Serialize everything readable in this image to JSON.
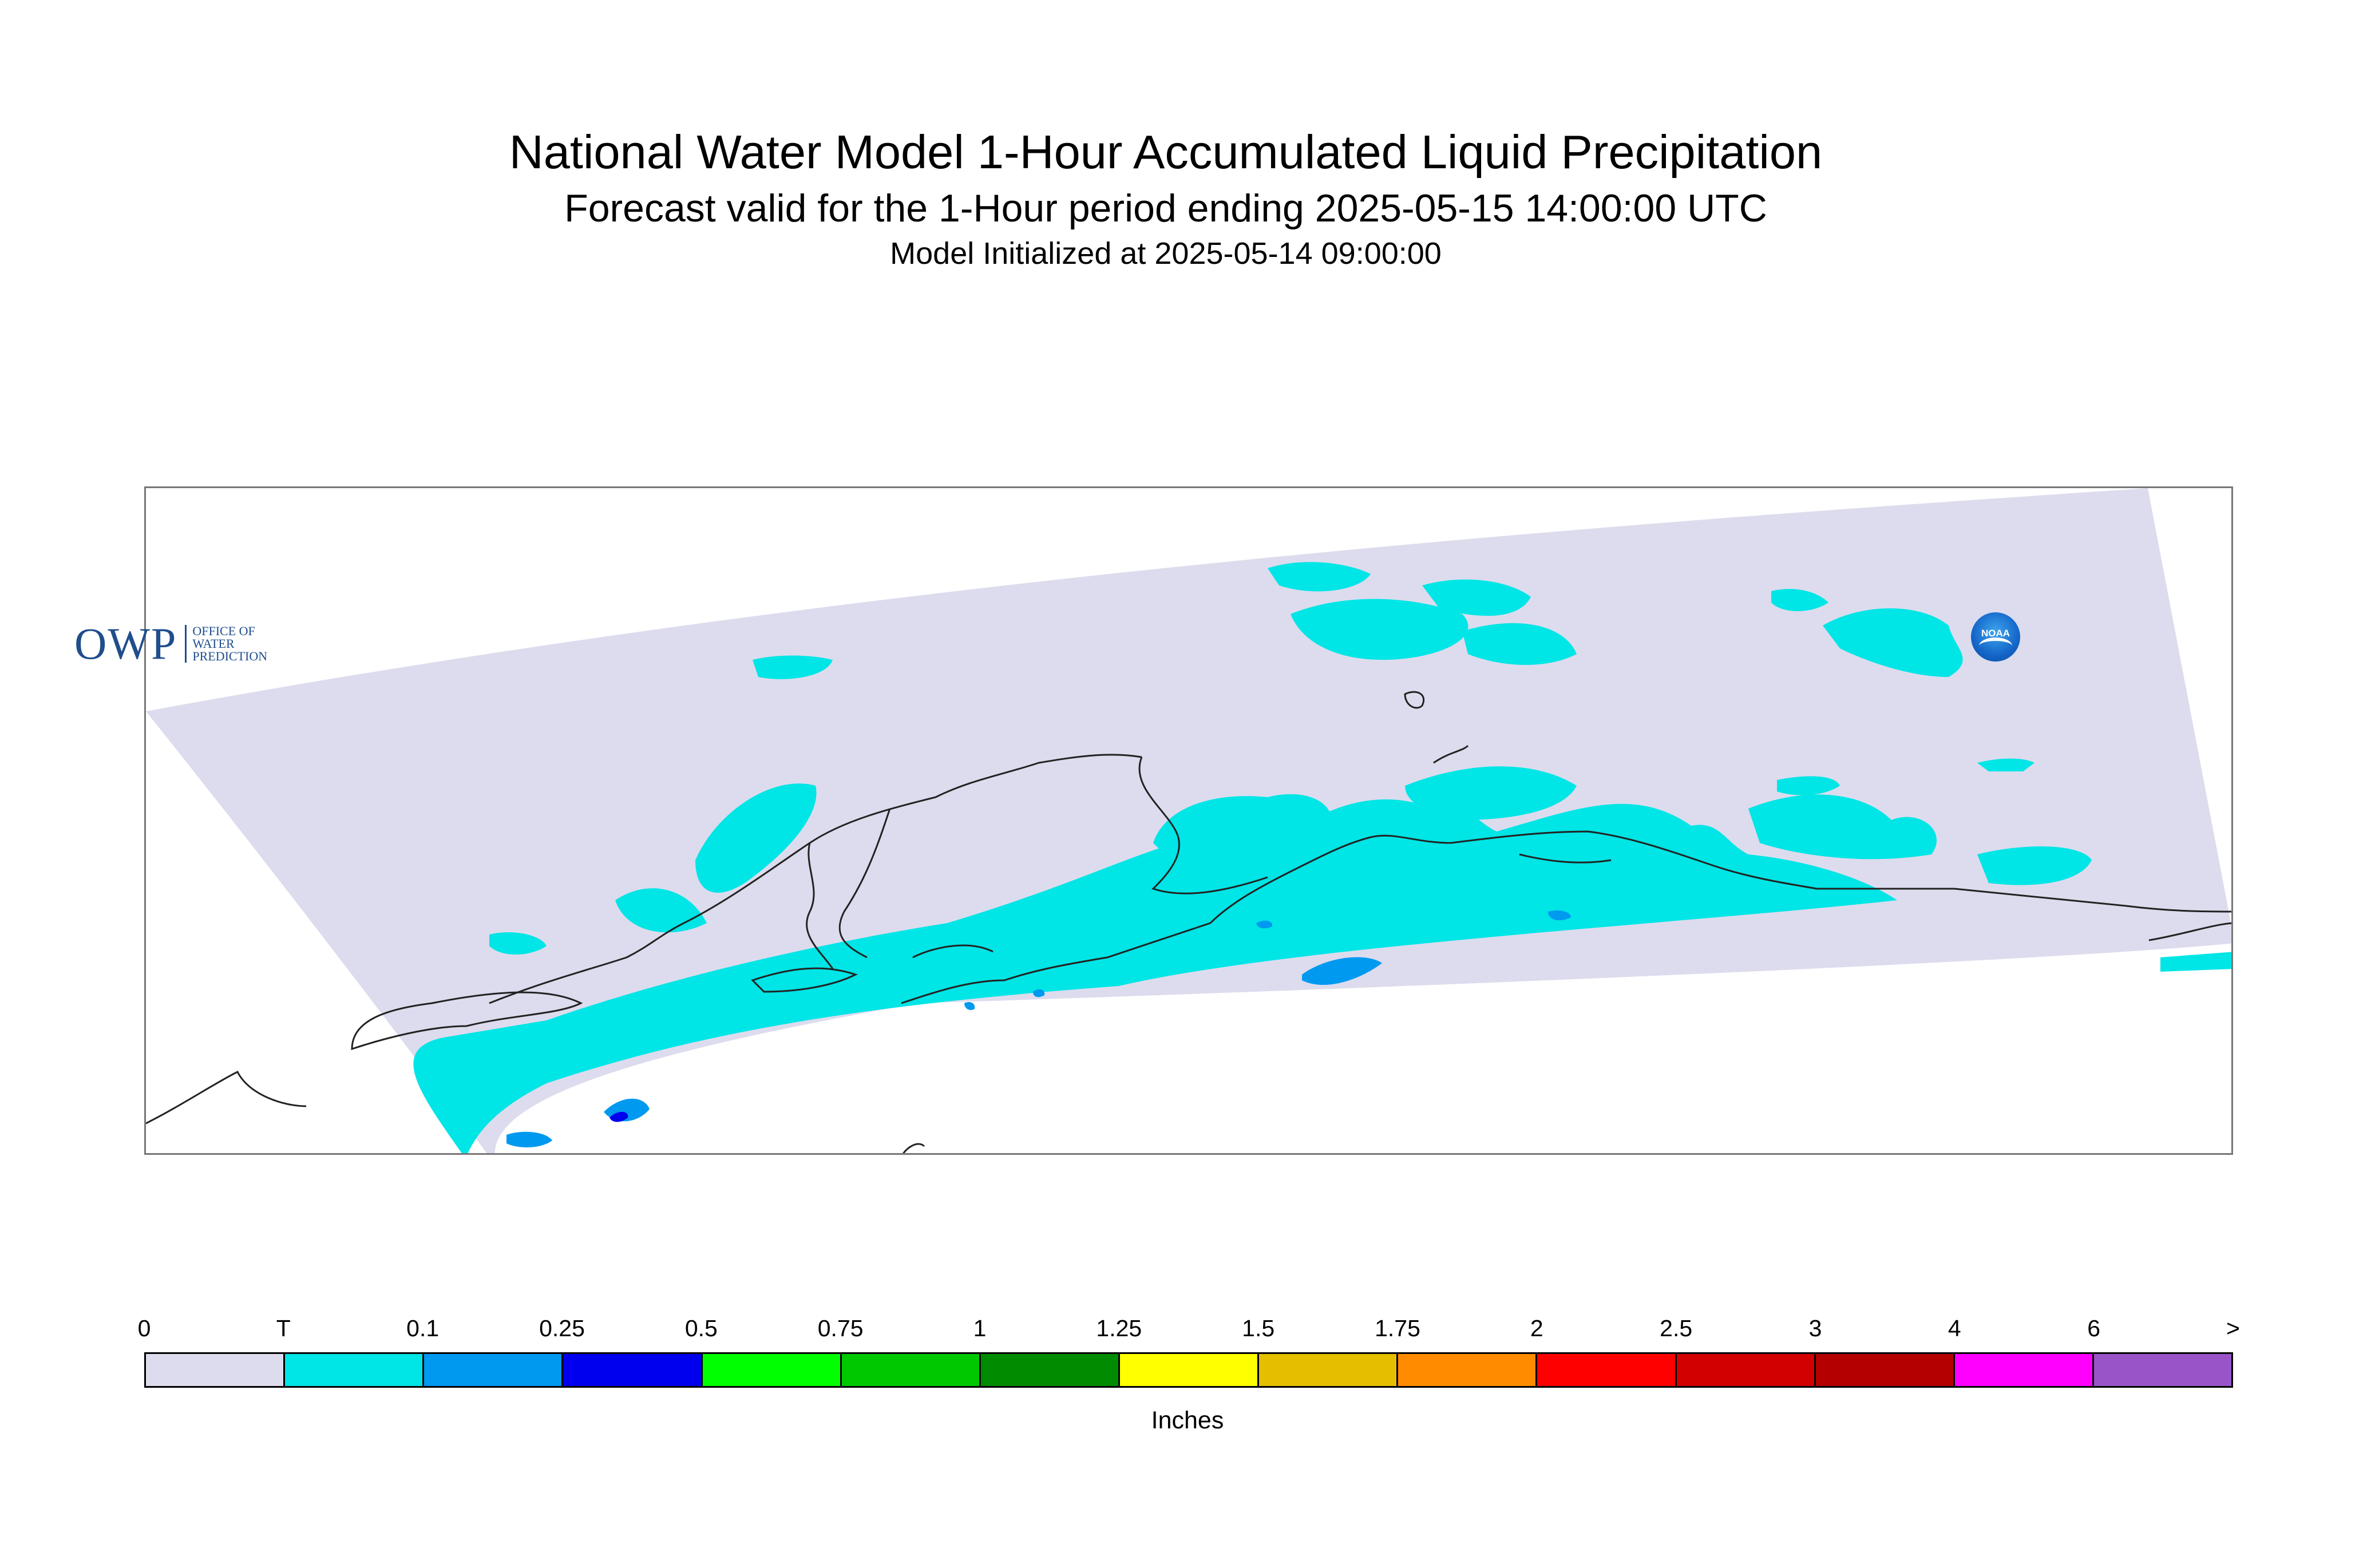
{
  "title": "National Water Model 1-Hour Accumulated Liquid Precipitation",
  "subtitle": "Forecast valid for the 1-Hour period ending 2025-05-15 14:00:00 UTC",
  "init_line": "Model Initialized at 2025-05-14 09:00:00",
  "logos": {
    "owp_mark": "OWP",
    "owp_sub": [
      "OFFICE OF",
      "WATER",
      "PREDICTION"
    ],
    "noaa": "NOAA"
  },
  "colors": {
    "domain_background": "#dcdcee",
    "trace": "#00e5e5",
    "coastline": "#222222",
    "frame": "#777777"
  },
  "legend": {
    "units": "Inches",
    "labels": [
      "0",
      "T",
      "0.1",
      "0.25",
      "0.5",
      "0.75",
      "1",
      "1.25",
      "1.5",
      "1.75",
      "2",
      "2.5",
      "3",
      "4",
      "6",
      ">"
    ],
    "colors": [
      "#dcdcee",
      "#00e5e5",
      "#0099f0",
      "#0000ee",
      "#00ff00",
      "#00c800",
      "#008c00",
      "#ffff00",
      "#e5be00",
      "#ff8c00",
      "#ff0000",
      "#d20000",
      "#b40000",
      "#ff00ff",
      "#9955c8"
    ]
  }
}
